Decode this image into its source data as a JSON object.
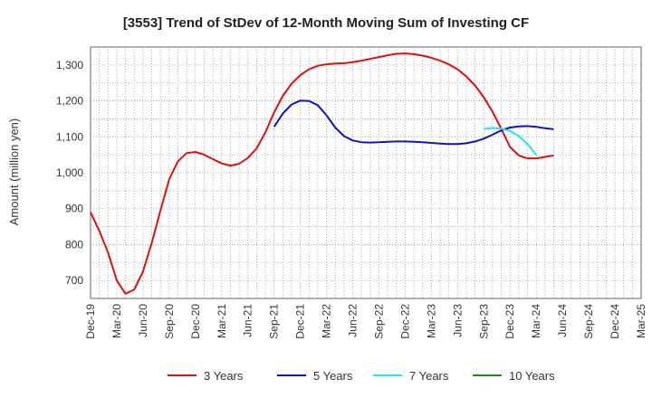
{
  "chart_data": {
    "type": "line",
    "title": "[3553]  Trend of StDev of 12-Month Moving Sum of Investing CF",
    "xlabel": "",
    "ylabel": "Amount (million yen)",
    "ylim": [
      650,
      1350
    ],
    "y_ticks": [
      700,
      800,
      900,
      1000,
      1100,
      1200,
      1300
    ],
    "y_tick_labels": [
      "700",
      "800",
      "900",
      "1,000",
      "1,100",
      "1,200",
      "1,300"
    ],
    "x_ticks": [
      "Dec-19",
      "Mar-20",
      "Jun-20",
      "Sep-20",
      "Dec-20",
      "Mar-21",
      "Jun-21",
      "Sep-21",
      "Dec-21",
      "Mar-22",
      "Jun-22",
      "Sep-22",
      "Dec-22",
      "Mar-23",
      "Jun-23",
      "Sep-23",
      "Dec-23",
      "Mar-24",
      "Jun-24",
      "Sep-24",
      "Dec-24",
      "Mar-25"
    ],
    "grid": true,
    "legend_position": "bottom",
    "series": [
      {
        "name": "3 Years",
        "color": "#dd1111",
        "start_month": 0,
        "values": [
          890,
          838,
          778,
          700,
          663,
          675,
          725,
          805,
          895,
          982,
          1032,
          1055,
          1058,
          1050,
          1038,
          1026,
          1020,
          1025,
          1041,
          1068,
          1112,
          1168,
          1214,
          1248,
          1272,
          1288,
          1298,
          1302,
          1304,
          1305,
          1308,
          1312,
          1317,
          1322,
          1327,
          1331,
          1332,
          1330,
          1326,
          1320,
          1312,
          1302,
          1288,
          1268,
          1243,
          1210,
          1170,
          1122,
          1072,
          1048,
          1040,
          1040,
          1044,
          1048
        ]
      },
      {
        "name": "5 Years",
        "color": "#1111cc",
        "start_month": 21,
        "values": [
          1128,
          1165,
          1190,
          1201,
          1200,
          1188,
          1160,
          1126,
          1102,
          1090,
          1085,
          1084,
          1085,
          1086,
          1087,
          1087,
          1086,
          1085,
          1083,
          1081,
          1080,
          1080,
          1082,
          1087,
          1095,
          1106,
          1118,
          1126,
          1129,
          1130,
          1128,
          1124,
          1121
        ]
      },
      {
        "name": "7 Years",
        "color": "#22e5ee",
        "start_month": 45,
        "values": [
          1122,
          1125,
          1123,
          1116,
          1102,
          1080,
          1050
        ]
      },
      {
        "name": "10 Years",
        "color": "#228822",
        "start_month": 0,
        "values": []
      }
    ]
  }
}
